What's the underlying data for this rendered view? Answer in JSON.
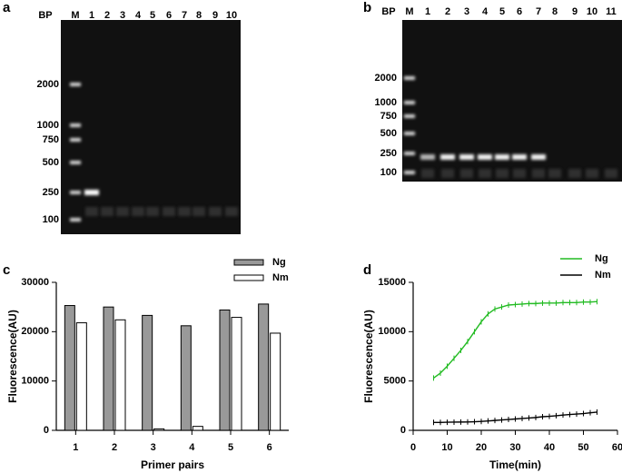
{
  "panel_labels": [
    "a",
    "b",
    "c",
    "d"
  ],
  "gels": [
    {
      "bp_label": "BP",
      "lanes": [
        "M",
        "1",
        "2",
        "3",
        "4",
        "5",
        "6",
        "7",
        "8",
        "9",
        "10"
      ],
      "markers": [
        "2000",
        "1000",
        "750",
        "500",
        "250",
        "100"
      ]
    },
    {
      "bp_label": "BP",
      "lanes": [
        "M",
        "1",
        "2",
        "3",
        "4",
        "5",
        "6",
        "7",
        "8",
        "9",
        "10",
        "11"
      ],
      "markers": [
        "2000",
        "1000",
        "750",
        "500",
        "250",
        "100"
      ]
    }
  ],
  "chart_data": [
    {
      "type": "bar",
      "x_label": "Primer pairs",
      "y_label": "Fluorescence(AU)",
      "categories": [
        "1",
        "2",
        "3",
        "4",
        "5",
        "6"
      ],
      "series": [
        {
          "name": "Ng",
          "color": "#999999",
          "values": [
            25300,
            25000,
            23300,
            21200,
            24400,
            25600
          ]
        },
        {
          "name": "Nm",
          "color": "#ffffff",
          "values": [
            21800,
            22400,
            300,
            800,
            22900,
            19700
          ]
        }
      ],
      "ylim": [
        0,
        30000
      ],
      "yticks": [
        0,
        10000,
        20000,
        30000
      ],
      "legend": "top-right"
    },
    {
      "type": "line",
      "x_label": "Time(min)",
      "y_label": "Fluorescence(AU)",
      "x": [
        6,
        8,
        10,
        12,
        14,
        16,
        18,
        20,
        22,
        24,
        26,
        28,
        30,
        32,
        34,
        36,
        38,
        40,
        42,
        44,
        46,
        48,
        50,
        52,
        54
      ],
      "series": [
        {
          "name": "Ng",
          "color": "#22bb22",
          "values": [
            5300,
            5800,
            6500,
            7300,
            8100,
            9000,
            10000,
            11000,
            11800,
            12300,
            12500,
            12700,
            12750,
            12800,
            12850,
            12850,
            12900,
            12900,
            12900,
            12950,
            12950,
            12950,
            13000,
            13000,
            13050
          ]
        },
        {
          "name": "Nm",
          "color": "#000000",
          "values": [
            800,
            800,
            820,
            830,
            840,
            850,
            870,
            900,
            950,
            1000,
            1050,
            1100,
            1150,
            1200,
            1250,
            1300,
            1380,
            1420,
            1480,
            1550,
            1600,
            1650,
            1700,
            1780,
            1850
          ]
        }
      ],
      "xlim": [
        0,
        60
      ],
      "xticks": [
        0,
        10,
        20,
        30,
        40,
        50,
        60
      ],
      "ylim": [
        0,
        15000
      ],
      "yticks": [
        0,
        5000,
        10000,
        15000
      ],
      "legend": "top-right"
    }
  ]
}
